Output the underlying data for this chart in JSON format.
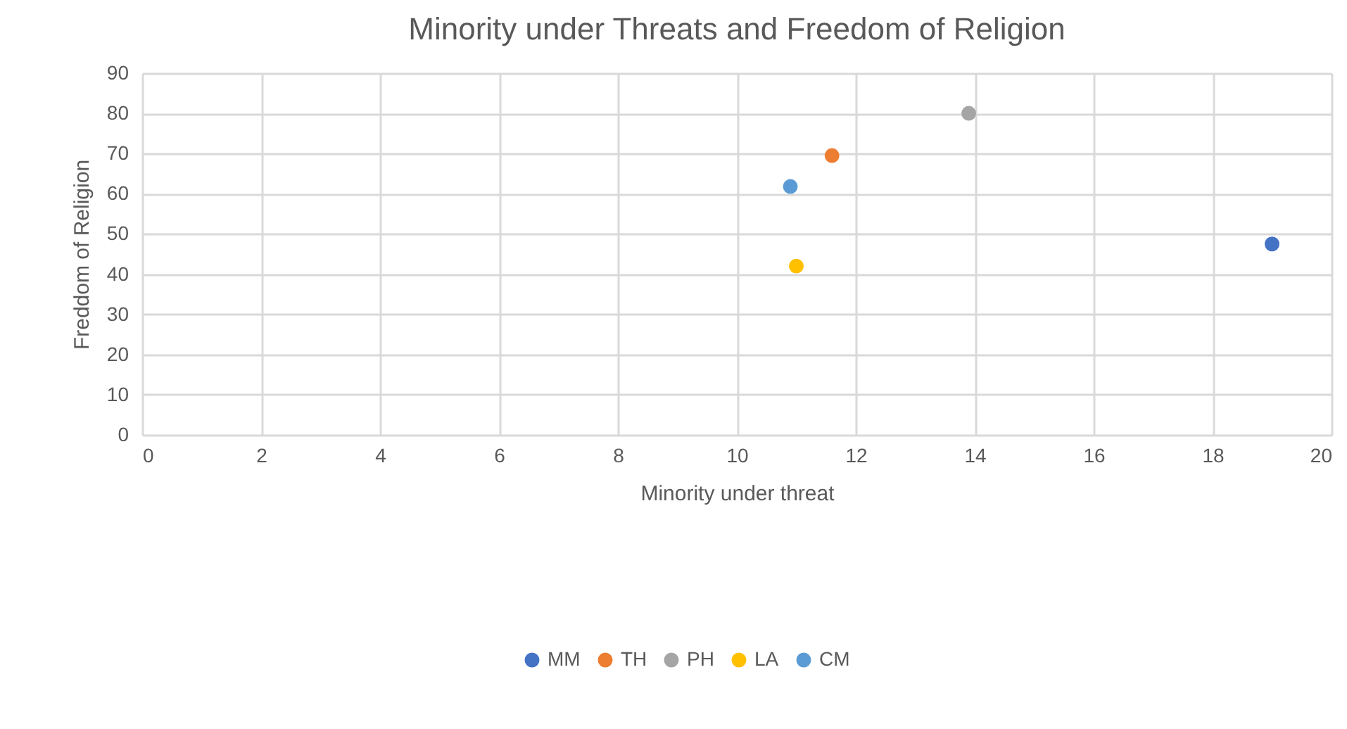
{
  "chart_data": {
    "type": "scatter",
    "title": "Minority under Threats and Freedom of Religion",
    "xlabel": "Minority under threat",
    "ylabel": "Freddom of Religion",
    "xlim": [
      0,
      20
    ],
    "xticks": [
      0,
      2,
      4,
      6,
      8,
      10,
      12,
      14,
      16,
      18,
      20
    ],
    "ylim": [
      0,
      90
    ],
    "yticks": [
      0,
      10,
      20,
      30,
      40,
      50,
      60,
      70,
      80,
      90
    ],
    "grid": true,
    "legend": "bottom",
    "marker": "circle",
    "series": [
      {
        "name": "MM",
        "color": "#4472c4",
        "x": [
          19.0
        ],
        "values": [
          47.5
        ]
      },
      {
        "name": "TH",
        "color": "#ed7d31",
        "x": [
          11.6
        ],
        "values": [
          69.5
        ]
      },
      {
        "name": "PH",
        "color": "#a5a5a5",
        "x": [
          13.9
        ],
        "values": [
          80
        ]
      },
      {
        "name": "LA",
        "color": "#ffc000",
        "x": [
          11.0
        ],
        "values": [
          42.0
        ]
      },
      {
        "name": "CM",
        "color": "#5b9bd5",
        "x": [
          10.9
        ],
        "values": [
          61.8
        ]
      }
    ]
  }
}
